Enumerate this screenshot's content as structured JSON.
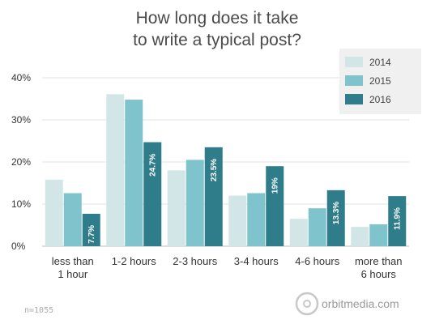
{
  "chart_data": {
    "type": "bar",
    "title_lines": [
      "How long does it take",
      "to write a typical post?"
    ],
    "categories": [
      [
        "less than",
        "1 hour"
      ],
      [
        "1-2 hours"
      ],
      [
        "2-3 hours"
      ],
      [
        "3-4 hours"
      ],
      [
        "4-6 hours"
      ],
      [
        "more than",
        "6 hours"
      ]
    ],
    "series": [
      {
        "name": "2014",
        "color": "#d2e6e7",
        "values": [
          15.8,
          36.1,
          18.0,
          12.0,
          6.5,
          4.6
        ]
      },
      {
        "name": "2015",
        "color": "#7fc3cc",
        "values": [
          12.6,
          34.8,
          20.5,
          12.6,
          9.0,
          5.2
        ]
      },
      {
        "name": "2016",
        "color": "#2f7d8b",
        "values": [
          7.7,
          24.7,
          23.5,
          19.0,
          13.3,
          11.9
        ]
      }
    ],
    "data_labels": {
      "series": "2016",
      "values": [
        "7.7%",
        "24.7%",
        "23.5%",
        "19%",
        "13.3%",
        "11.9%"
      ]
    },
    "y_ticks": [
      "0%",
      "10%",
      "20%",
      "30%",
      "40%"
    ],
    "ylim": [
      0,
      40
    ],
    "grid": true,
    "legend_position": "top-right"
  },
  "footnote": "n=1055",
  "brand": "orbitmedia.com"
}
